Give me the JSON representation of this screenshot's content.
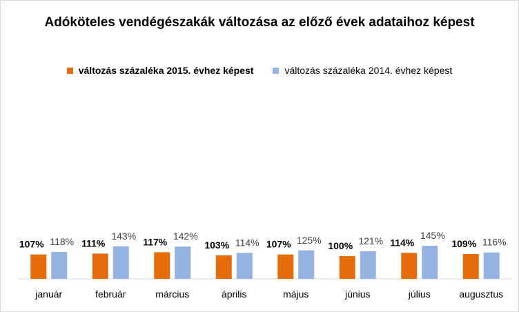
{
  "chart_data": {
    "type": "bar",
    "title": "Adóköteles vendégészakák változása az előző évek adataihoz képest",
    "categories": [
      "január",
      "február",
      "március",
      "április",
      "május",
      "június",
      "július",
      "augusztus"
    ],
    "series": [
      {
        "name": "változás százaléka 2015. évhez képest",
        "color": "#e46c0a",
        "values": [
          107,
          111,
          117,
          103,
          107,
          100,
          114,
          109
        ],
        "labels": [
          "107%",
          "111%",
          "117%",
          "103%",
          "107%",
          "100%",
          "114%",
          "109%"
        ]
      },
      {
        "name": "változás százaléka 2014. évhez képest",
        "color": "#95b3e0",
        "values": [
          118,
          143,
          142,
          114,
          125,
          121,
          145,
          116
        ],
        "labels": [
          "118%",
          "143%",
          "142%",
          "114%",
          "125%",
          "121%",
          "145%",
          "116%"
        ]
      }
    ],
    "ylim": [
      0,
      175
    ],
    "grid": false,
    "legend": "top"
  }
}
